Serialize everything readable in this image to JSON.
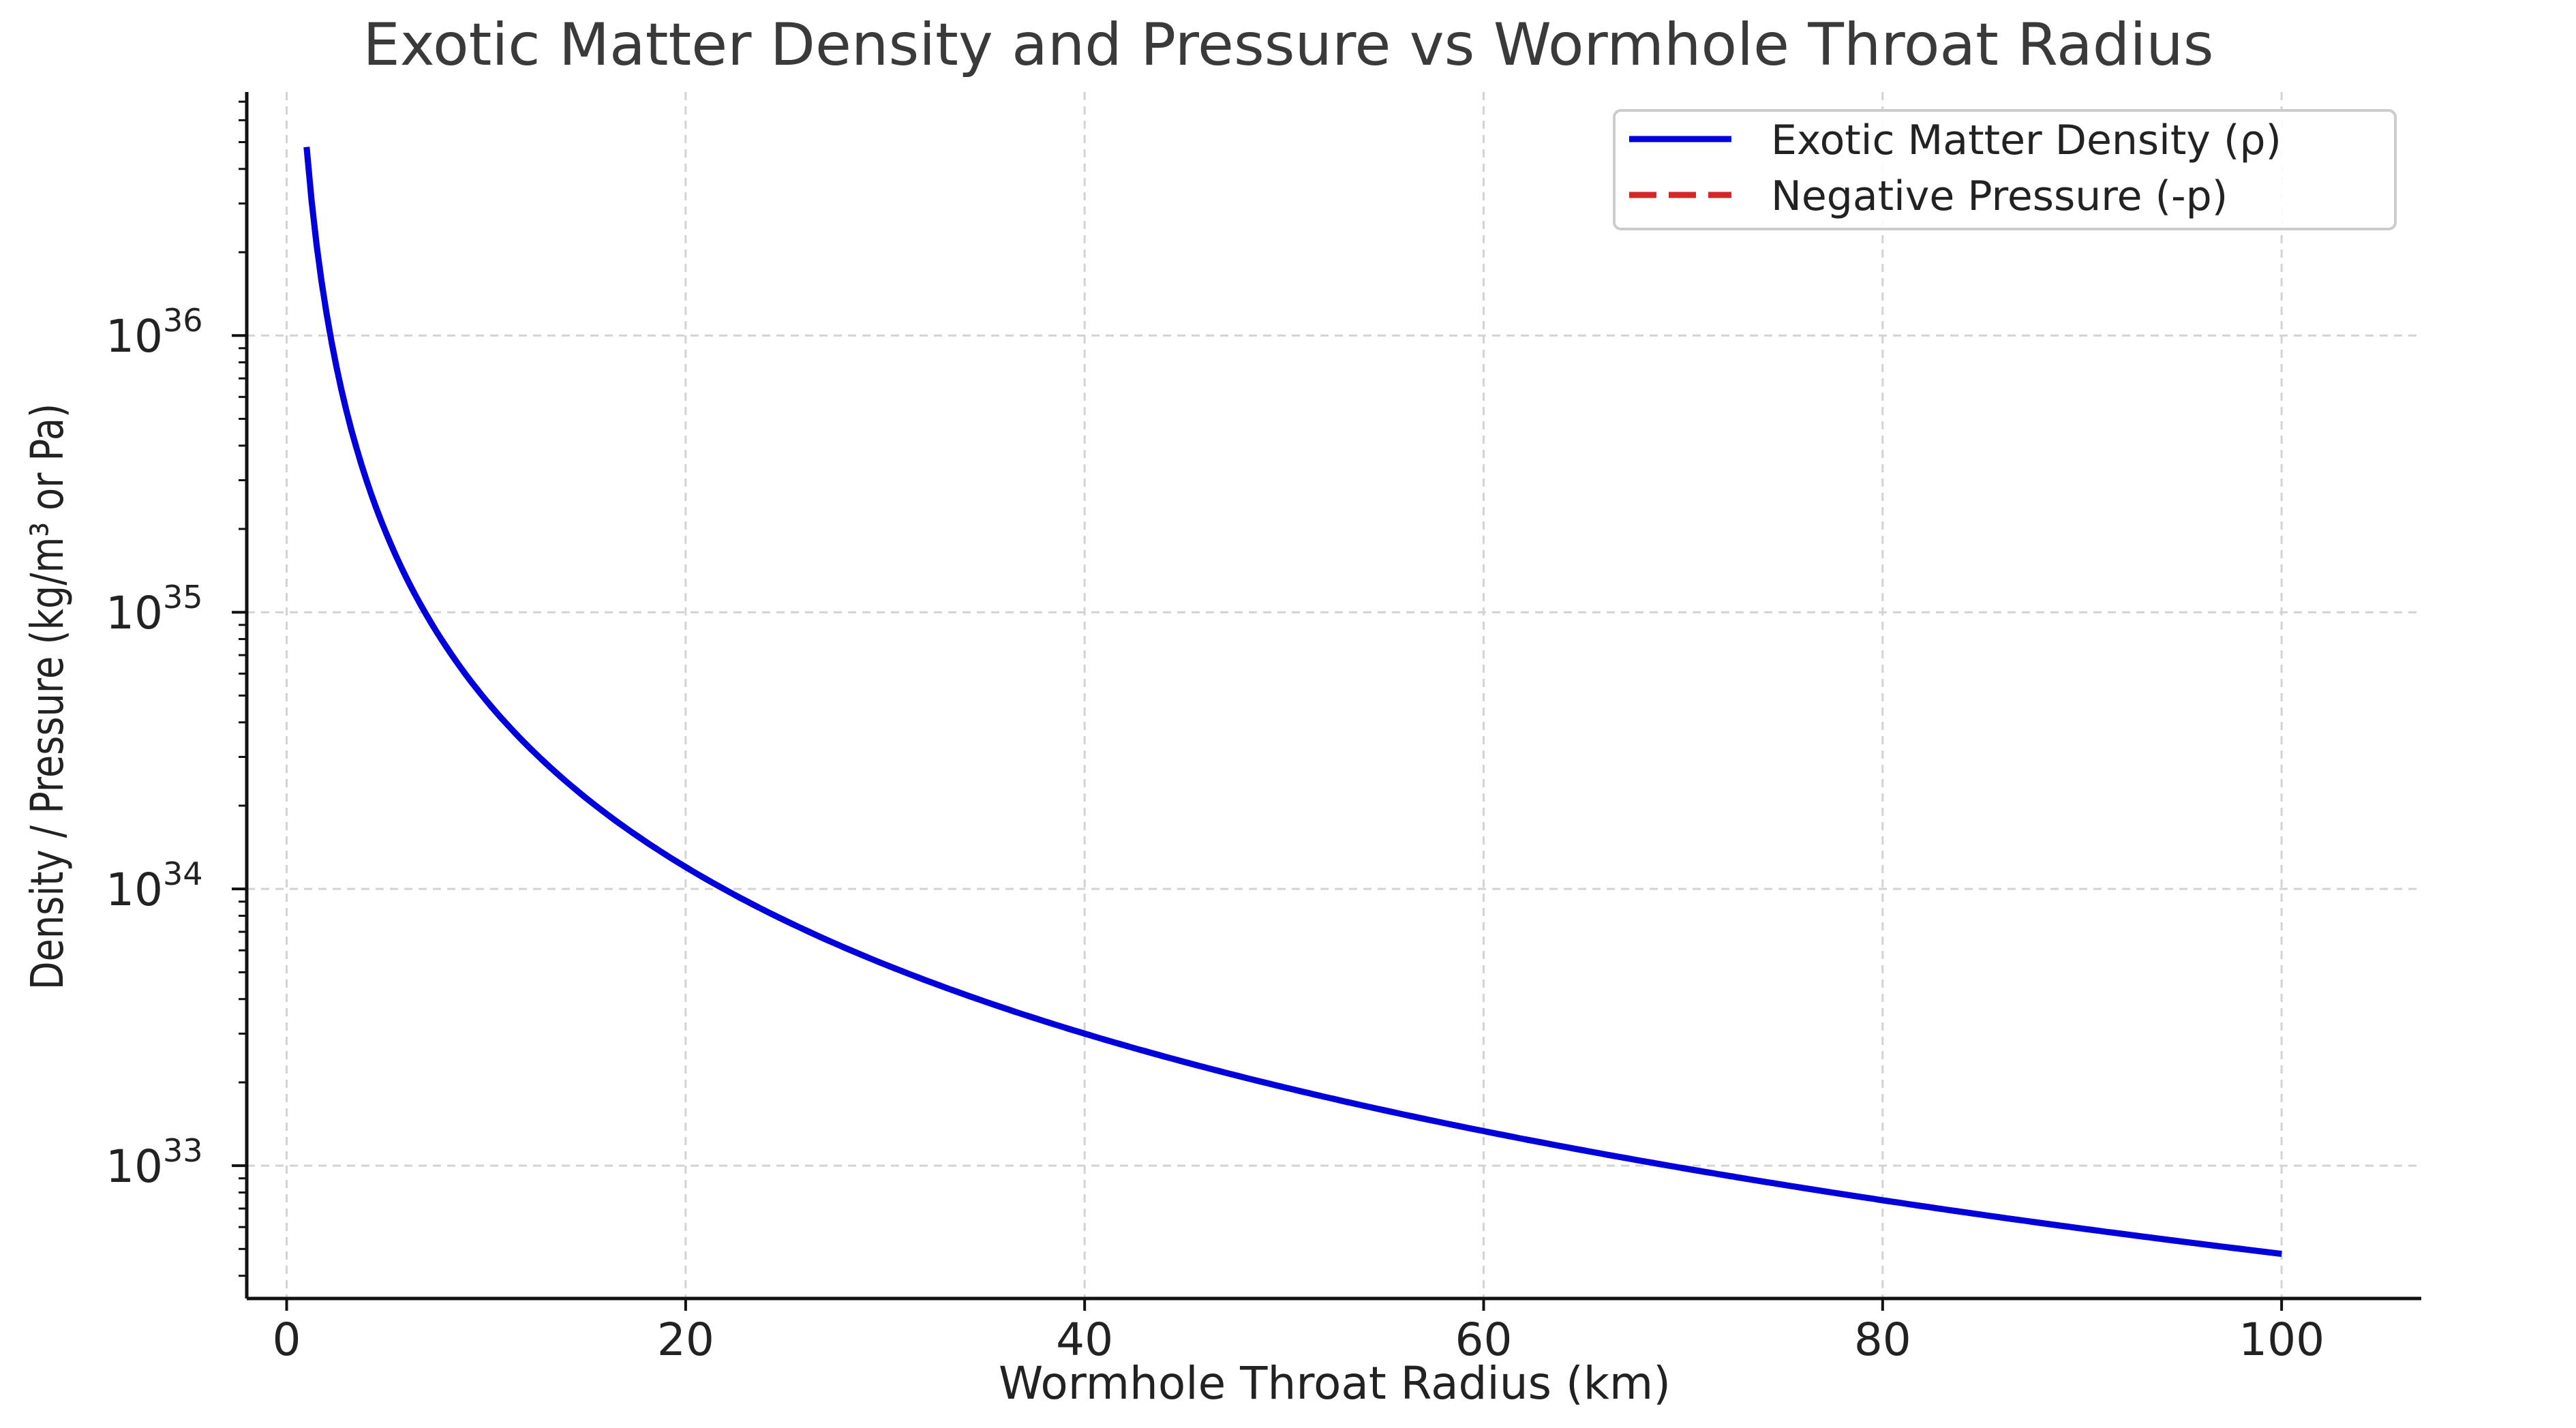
{
  "chart_data": {
    "type": "line",
    "title": "Exotic Matter Density and Pressure vs Wormhole Throat Radius",
    "xlabel": "Wormhole Throat Radius (km)",
    "ylabel": "Density / Pressure (kg/m³ or Pa)",
    "xlim": [
      -2,
      107
    ],
    "ylim_log10": [
      32.52,
      36.88
    ],
    "yscale": "log",
    "grid": true,
    "legend_position": "top-right",
    "x_ticks": [
      0,
      20,
      40,
      60,
      80,
      100
    ],
    "x_tick_labels": [
      "0",
      "20",
      "40",
      "60",
      "80",
      "100"
    ],
    "y_ticks_exponent": [
      33,
      34,
      35,
      36
    ],
    "y_tick_labels": [
      {
        "base": "10",
        "exp": "33"
      },
      {
        "base": "10",
        "exp": "34"
      },
      {
        "base": "10",
        "exp": "35"
      },
      {
        "base": "10",
        "exp": "36"
      }
    ],
    "series": [
      {
        "name": "Exotic Matter Density (ρ)",
        "color": "#0000dd",
        "style": "solid",
        "model": "rho = 4.8e36 / r^2",
        "coefficient": 4.8e+36,
        "exponent": -2,
        "x_range": [
          1,
          100
        ]
      },
      {
        "name": "Negative Pressure (-p)",
        "color": "#d62728",
        "style": "dashed",
        "model": "hidden beneath density curve",
        "x_range": [
          1,
          100
        ]
      }
    ]
  }
}
